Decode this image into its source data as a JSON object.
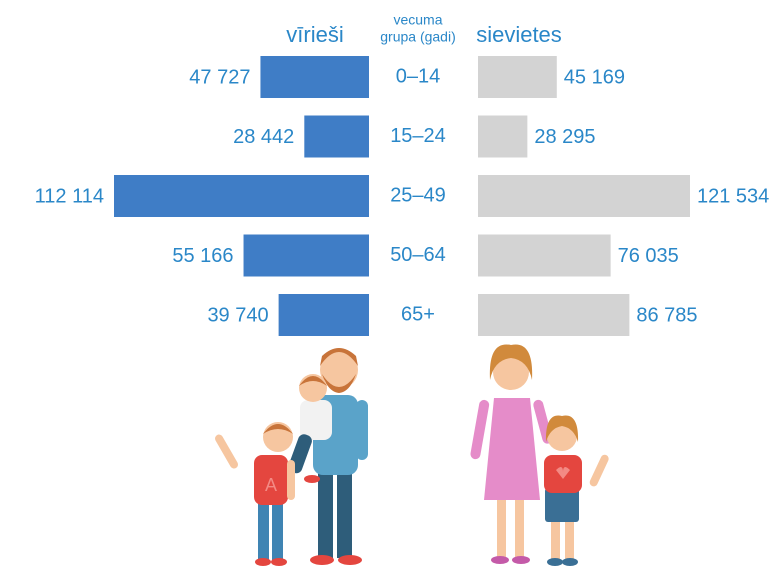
{
  "chart_data": {
    "type": "pyramid",
    "categories_title": [
      "vecuma",
      "grupa (gadi)"
    ],
    "categories": [
      "0–14",
      "15–24",
      "25–49",
      "50–64",
      "65+"
    ],
    "series": [
      {
        "name": "vīrieši",
        "color": "#3f7dc6",
        "values": [
          47727,
          28442,
          112114,
          55166,
          39740
        ],
        "value_labels": [
          "47 727",
          "28 442",
          "112 114",
          "55 166",
          "39 740"
        ]
      },
      {
        "name": "sievietes",
        "color": "#d3d3d3",
        "values": [
          45169,
          28295,
          121534,
          76035,
          86785
        ],
        "value_labels": [
          "45 169",
          "28 295",
          "121 534",
          "76 035",
          "86 785"
        ]
      }
    ],
    "label_color": "#2a87c8"
  }
}
